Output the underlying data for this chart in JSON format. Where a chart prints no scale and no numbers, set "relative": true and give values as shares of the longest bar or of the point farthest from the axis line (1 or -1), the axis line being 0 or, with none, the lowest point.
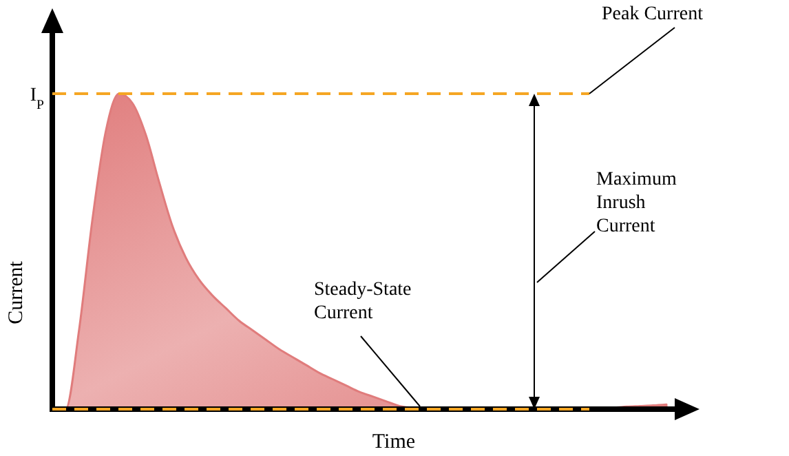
{
  "chart_data": {
    "type": "area",
    "relative": true,
    "xlabel": "Time",
    "ylabel": "Current",
    "categories": [
      null,
      null,
      null,
      null,
      null,
      null,
      null,
      null,
      null,
      null,
      null,
      null,
      null,
      null,
      null,
      null,
      null,
      null,
      null,
      null,
      null,
      null,
      null,
      null,
      null,
      null,
      null,
      null,
      null,
      null,
      null,
      null,
      null,
      null,
      null,
      null,
      null,
      null,
      null,
      null,
      null,
      null,
      null,
      null,
      null,
      null,
      null
    ],
    "series": [
      {
        "color": "#e07c7c",
        "values": [
          0,
          0,
          0.25,
          0.6,
          0.88,
          1,
          0.97,
          0.87,
          0.72,
          0.58,
          0.48,
          0.41,
          0.36,
          0.32,
          0.28,
          0.25,
          0.22,
          0.19,
          0.165,
          0.14,
          0.115,
          0.095,
          0.075,
          0.055,
          0.04,
          0.025,
          0.01,
          0.005,
          0.005,
          0.005,
          0.005,
          0.005,
          0.005,
          0.005,
          0.005,
          0.005,
          0.005,
          0.005,
          0.005,
          0.005,
          0.005,
          0.005,
          0.005,
          0.008,
          0.01,
          0.012,
          0.015
        ]
      }
    ],
    "ref_lines": [
      {
        "axis": "y",
        "value": 1,
        "label": "I$_{P}$",
        "color": "#f5a623",
        "line_style": "dashed"
      },
      {
        "axis": "y",
        "value": 0,
        "color": "#f5a623",
        "line_style": "dashed"
      }
    ],
    "annotations": [
      "Peak Current",
      "Maximum Inrush Current",
      "Steady-State Current"
    ],
    "line_style": "solid"
  }
}
